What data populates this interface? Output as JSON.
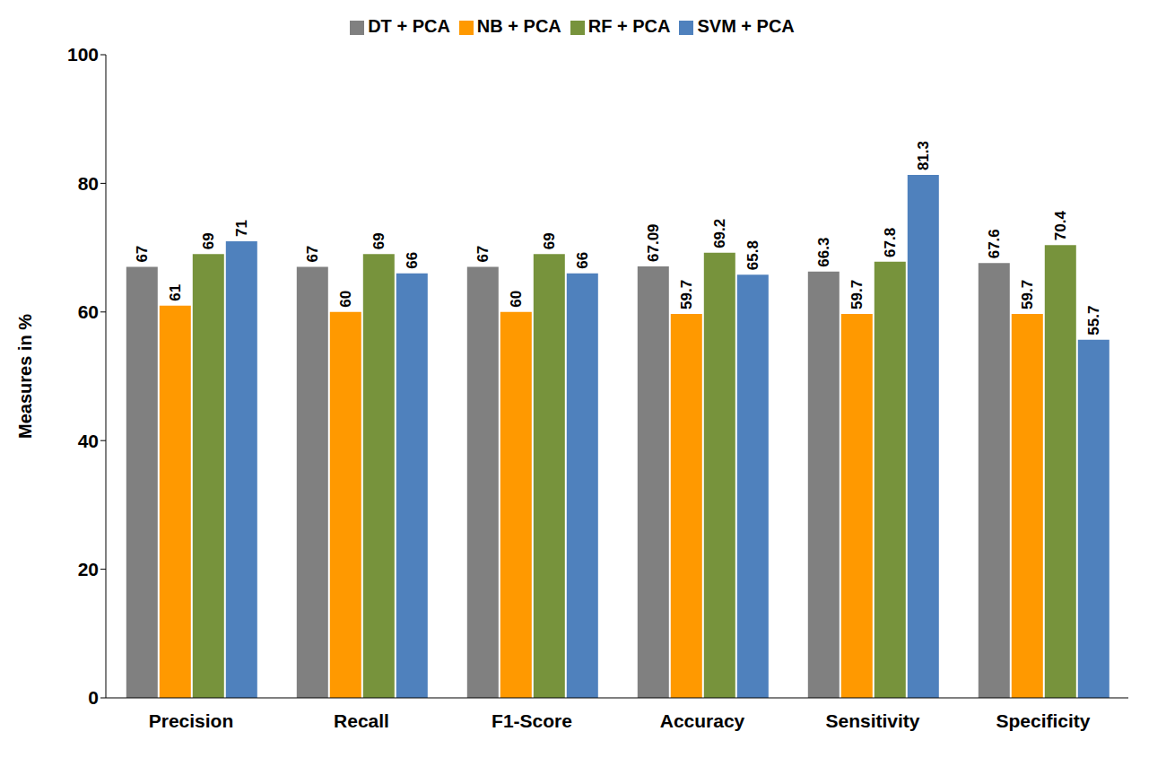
{
  "chart_data": {
    "type": "bar",
    "y_label": "Measures in %",
    "categories": [
      "Precision",
      "Recall",
      "F1-Score",
      "Accuracy",
      "Sensitivity",
      "Specificity"
    ],
    "series": [
      {
        "name": "DT + PCA",
        "color": "#808080",
        "values": [
          67,
          67,
          67,
          67.09,
          66.3,
          67.6
        ]
      },
      {
        "name": "NB + PCA",
        "color": "#ff9900",
        "values": [
          61,
          60,
          60,
          59.7,
          59.7,
          59.7
        ]
      },
      {
        "name": "RF + PCA",
        "color": "#77933c",
        "values": [
          69,
          69,
          69,
          69.2,
          67.8,
          70.4
        ]
      },
      {
        "name": "SVM + PCA",
        "color": "#4f81bd",
        "values": [
          71,
          66,
          66,
          65.8,
          81.3,
          55.7
        ]
      }
    ],
    "ylim": [
      0,
      100
    ],
    "yticks": [
      0,
      20,
      40,
      60,
      80,
      100
    ],
    "grid": false,
    "legend": "top",
    "data_labels": true
  }
}
